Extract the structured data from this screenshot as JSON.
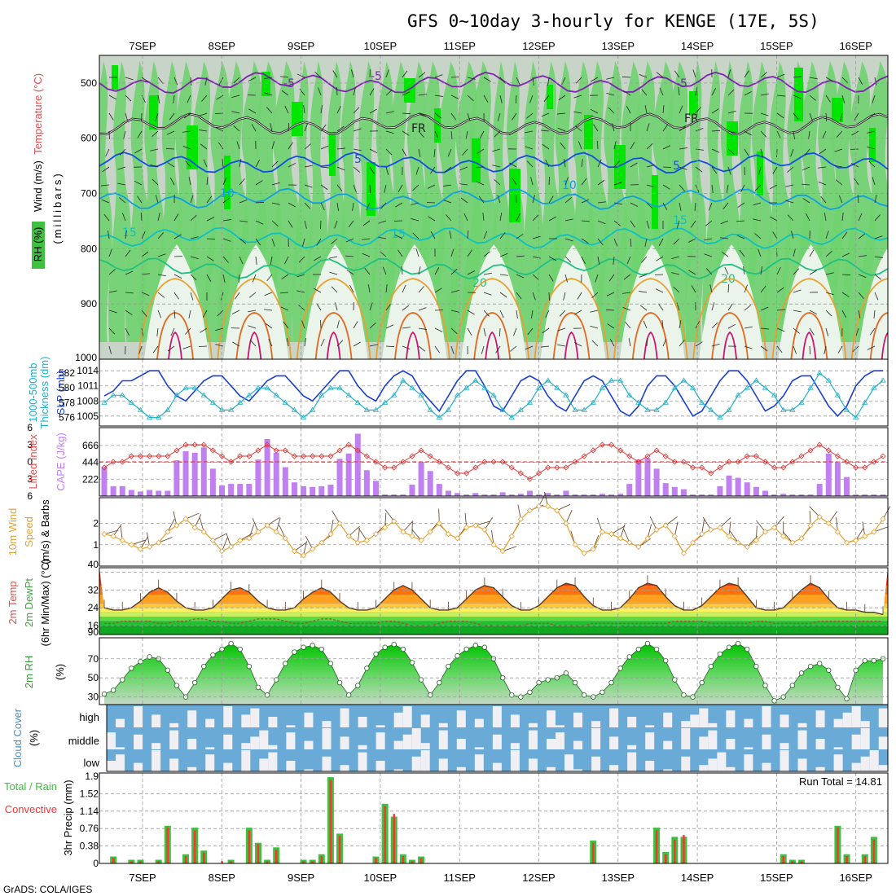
{
  "title": "GFS 0~10day 3-hourly for KENGE (17E, 5S)",
  "credit": "GrADS: COLA/IGES",
  "run_total": "Run Total = 14.81",
  "dates": [
    "7SEP",
    "8SEP",
    "9SEP",
    "10SEP",
    "11SEP",
    "12SEP",
    "13SEP",
    "14SEP",
    "15SEP",
    "16SEP"
  ],
  "colors": {
    "rh_green": "#5fd35f",
    "rh_bright": "#00e600",
    "rh_grey": "#b4c4b4",
    "rh_pale": "#e8f4e8",
    "slp": "#1a3fd0",
    "thickness": "#22b0c8",
    "cape": "#c080f0",
    "lifted": "#e03030",
    "wind": "#e8a030",
    "cloud": "#6aaad6",
    "precip_total": "#40c040",
    "precip_conv": "#ff3030"
  },
  "chart_data": [
    {
      "type": "heatmap",
      "panel": "upper-air",
      "ylabel_parts": [
        "Wind (m/s)",
        "Temperature (°C)",
        "RH (%)"
      ],
      "ylabel_unit": "(millibars)",
      "yticks": [
        500,
        600,
        700,
        800,
        900,
        1000
      ],
      "ylim": [
        1000,
        450
      ],
      "isotherms": [
        {
          "label": "-5",
          "p": 500
        },
        {
          "label": "FR",
          "p": 575
        },
        {
          "label": "5",
          "p": 645
        },
        {
          "label": "10",
          "p": 710
        },
        {
          "label": "15",
          "p": 780
        },
        {
          "label": "20",
          "p": 835
        }
      ],
      "contour_labels": [
        "-5",
        "-5",
        "-5",
        "FR",
        "FR",
        "5",
        "5",
        "10",
        "10",
        "15",
        "15",
        "15",
        "20",
        "20",
        "20"
      ]
    },
    {
      "type": "line",
      "panel": "slp-thickness",
      "ylabel_left": [
        "1000-500mb",
        "Thickness (dm)"
      ],
      "ylabel_right": "SLP (mb)",
      "yticks_left": [
        576,
        578,
        580,
        582
      ],
      "yticks_right": [
        1005,
        1008,
        1011,
        1014
      ],
      "series": [
        {
          "name": "SLP",
          "unit": "mb",
          "values": [
            1009,
            1010,
            1012,
            1012,
            1013,
            1014,
            1014,
            1011,
            1009,
            1008,
            1010,
            1012,
            1013,
            1013,
            1011,
            1009,
            1008,
            1010,
            1012,
            1013,
            1013,
            1011,
            1009,
            1008,
            1010,
            1012,
            1014,
            1014,
            1011,
            1009,
            1008,
            1011,
            1013,
            1014,
            1013,
            1010,
            1008,
            1006,
            1009,
            1012,
            1014,
            1014,
            1011,
            1007,
            1006,
            1009,
            1012,
            1013,
            1012,
            1009,
            1007,
            1006,
            1009,
            1012,
            1013,
            1012,
            1009,
            1006,
            1005,
            1007,
            1011,
            1013,
            1013,
            1011,
            1008,
            1005,
            1006,
            1009,
            1012,
            1014,
            1014,
            1012,
            1009,
            1006,
            1007,
            1009,
            1012,
            1013,
            1013,
            1010,
            1007,
            1005,
            1007,
            1011,
            1013,
            1014,
            1014
          ]
        },
        {
          "name": "Thickness",
          "unit": "dm",
          "values": [
            578,
            579,
            579,
            578,
            577,
            576,
            576,
            577,
            579,
            580,
            580,
            579,
            578,
            577,
            577,
            578,
            579,
            580,
            580,
            579,
            578,
            577,
            576,
            577,
            579,
            580,
            580,
            579,
            578,
            577,
            577,
            578,
            579,
            581,
            580,
            579,
            577,
            576,
            577,
            579,
            580,
            581,
            580,
            579,
            577,
            576,
            577,
            578,
            580,
            581,
            580,
            579,
            577,
            577,
            578,
            580,
            581,
            581,
            579,
            578,
            577,
            577,
            578,
            580,
            581,
            580,
            578,
            577,
            576,
            577,
            579,
            580,
            581,
            580,
            579,
            577,
            577,
            578,
            580,
            582,
            581,
            579,
            577,
            576,
            578,
            580,
            581
          ]
        }
      ]
    },
    {
      "type": "bar",
      "panel": "cape-lifted",
      "ylabel_left": "Lifted Index",
      "ylabel_right": "CAPE (J/kg)",
      "yticks_left": [
        6,
        3,
        0,
        -3,
        -6
      ],
      "yticks_right": [
        222,
        444,
        666
      ],
      "series": [
        {
          "name": "CAPE",
          "unit": "J/kg",
          "values": [
            380,
            130,
            130,
            80,
            60,
            80,
            70,
            70,
            470,
            590,
            570,
            640,
            360,
            140,
            160,
            160,
            160,
            480,
            750,
            570,
            380,
            180,
            130,
            120,
            130,
            150,
            490,
            560,
            820,
            340,
            200,
            20,
            20,
            20,
            150,
            450,
            330,
            160,
            70,
            40,
            20,
            40,
            20,
            20,
            50,
            20,
            30,
            70,
            20,
            40,
            20,
            70,
            20,
            20,
            20,
            30,
            20,
            30,
            160,
            480,
            500,
            360,
            170,
            120,
            90,
            20,
            20,
            20,
            130,
            270,
            240,
            180,
            120,
            70,
            20,
            30,
            20,
            20,
            20,
            160,
            560,
            440,
            250,
            20,
            20,
            20,
            20
          ]
        },
        {
          "name": "Lifted Index",
          "unit": "",
          "values": [
            1,
            0,
            0,
            -1,
            -1,
            -1,
            -1,
            -1,
            -2,
            -3,
            -3,
            -3,
            -2,
            -1,
            0,
            -1,
            -1,
            -2,
            -3,
            -2,
            -2,
            -1,
            -1,
            -1,
            -1,
            -1,
            -2,
            -3,
            -2,
            -1,
            0,
            1,
            1,
            0,
            -1,
            -2,
            -1,
            0,
            1,
            2,
            2,
            1,
            0,
            0,
            0,
            1,
            2,
            3,
            2,
            1,
            1,
            1,
            0,
            -1,
            -2,
            -3,
            -3,
            -2,
            -1,
            0,
            -1,
            -2,
            -1,
            0,
            0,
            1,
            1,
            2,
            1,
            0,
            0,
            -1,
            -1,
            0,
            1,
            1,
            0,
            -1,
            -2,
            -3,
            -2,
            -1,
            0,
            1,
            1,
            0,
            -1
          ]
        }
      ]
    },
    {
      "type": "line",
      "panel": "wind10m",
      "ylabel": [
        "10m Wind",
        "Speed",
        "(m/s) & Barbs"
      ],
      "yticks": [
        1,
        2
      ],
      "series": [
        {
          "name": "Speed",
          "unit": "m/s",
          "values": [
            1.5,
            1.4,
            1.2,
            1.0,
            0.8,
            0.9,
            1.1,
            1.6,
            1.9,
            2.2,
            1.8,
            1.6,
            1.2,
            0.7,
            0.9,
            1.2,
            1.3,
            1.6,
            1.9,
            1.6,
            1.3,
            0.7,
            0.5,
            0.8,
            1.1,
            1.5,
            2.0,
            1.4,
            1.1,
            1.2,
            1.5,
            1.8,
            2.1,
            1.6,
            1.4,
            1.2,
            1.6,
            2.0,
            1.5,
            1.3,
            1.8,
            1.9,
            1.7,
            1.0,
            0.7,
            1.4,
            2.2,
            2.6,
            2.8,
            2.8,
            2.6,
            2.0,
            1.0,
            0.6,
            0.8,
            1.6,
            1.5,
            1.3,
            1.1,
            0.9,
            1.3,
            1.7,
            1.9,
            1.4,
            0.6,
            1.1,
            1.5,
            1.7,
            1.8,
            1.4,
            1.1,
            0.9,
            1.2,
            1.6,
            1.8,
            1.4,
            1.1,
            1.3,
            1.9,
            2.3,
            2.0,
            1.6,
            1.1,
            1.2,
            1.4,
            1.6,
            2.2
          ]
        }
      ]
    },
    {
      "type": "area",
      "panel": "temperature",
      "ylabel": [
        "2m Temp",
        "2m DewPt",
        "(6hr Min/Max) (°C)"
      ],
      "yticks": [
        16,
        24,
        32,
        40
      ],
      "extra_tick": "90",
      "series": [
        {
          "name": "2m Temp",
          "unit": "°C",
          "values": [
            24,
            23,
            23,
            24,
            27,
            31,
            33,
            31,
            27,
            24,
            23,
            23,
            24,
            28,
            32,
            33,
            31,
            27,
            24,
            23,
            23,
            24,
            28,
            31,
            33,
            31,
            27,
            24,
            23,
            23,
            24,
            28,
            32,
            34,
            32,
            28,
            24,
            23,
            23,
            24,
            28,
            32,
            34,
            33,
            29,
            25,
            23,
            23,
            25,
            29,
            33,
            35,
            34,
            29,
            25,
            23,
            23,
            24,
            28,
            33,
            35,
            34,
            29,
            25,
            23,
            23,
            25,
            29,
            33,
            35,
            34,
            29,
            24,
            23,
            23,
            24,
            28,
            32,
            35,
            33,
            28,
            24,
            23,
            23,
            22,
            22,
            21
          ]
        },
        {
          "name": "2m DewPt",
          "unit": "°C",
          "values": [
            17,
            17,
            18,
            18,
            18,
            18,
            17,
            17,
            18,
            18,
            19,
            19,
            18,
            18,
            17,
            17,
            18,
            19,
            19,
            19,
            18,
            17,
            17,
            18,
            19,
            19,
            18,
            17,
            17,
            17,
            17,
            18,
            18,
            17,
            16,
            16,
            16,
            17,
            18,
            18,
            18,
            17,
            16,
            16,
            16,
            16,
            16,
            17,
            17,
            17,
            16,
            16,
            16,
            16,
            17,
            17,
            17,
            17,
            17,
            17,
            17,
            17,
            17,
            18,
            18,
            18,
            18,
            17,
            17,
            17,
            17,
            17,
            18,
            18,
            17,
            17,
            17,
            17,
            17,
            18,
            18,
            18,
            18,
            18,
            18,
            18,
            18
          ]
        }
      ]
    },
    {
      "type": "area",
      "panel": "rh2m",
      "ylabel": "2m RH",
      "yunit": "(%)",
      "yticks": [
        30,
        50,
        70
      ],
      "series": [
        {
          "name": "2m RH",
          "unit": "%",
          "values": [
            33,
            37,
            48,
            60,
            67,
            72,
            70,
            58,
            42,
            30,
            45,
            62,
            74,
            80,
            86,
            80,
            62,
            40,
            32,
            48,
            65,
            77,
            82,
            84,
            80,
            65,
            45,
            32,
            42,
            60,
            75,
            82,
            85,
            80,
            66,
            48,
            32,
            45,
            62,
            73,
            80,
            84,
            82,
            70,
            50,
            32,
            30,
            35,
            45,
            48,
            50,
            55,
            45,
            32,
            30,
            35,
            45,
            60,
            72,
            80,
            86,
            80,
            68,
            48,
            32,
            30,
            45,
            62,
            75,
            82,
            86,
            80,
            62,
            42,
            26,
            30,
            42,
            55,
            62,
            65,
            58,
            40,
            28,
            58,
            68,
            68,
            70
          ]
        }
      ]
    },
    {
      "type": "heatmap",
      "panel": "cloud",
      "ylabel": "Cloud Cover",
      "yunit": "(%)",
      "levels": [
        "high",
        "middle",
        "low"
      ]
    },
    {
      "type": "bar",
      "panel": "precip",
      "ylabel": "3hr Precip (mm)",
      "legend": [
        "Total / Rain",
        "Convective"
      ],
      "yticks": [
        0,
        0.38,
        0.76,
        1.14,
        1.52,
        1.9
      ],
      "series": [
        {
          "name": "Total / Rain",
          "unit": "mm",
          "values": [
            0,
            0.15,
            0,
            0.08,
            0.08,
            0,
            0.08,
            0.82,
            0,
            0.2,
            0.78,
            0.28,
            0,
            0,
            0.08,
            0,
            0.78,
            0.45,
            0.08,
            0.35,
            0,
            0,
            0.08,
            0.08,
            0.2,
            1.88,
            0.65,
            0,
            0,
            0,
            0.15,
            1.3,
            1.02,
            0.2,
            0.08,
            0.15,
            0,
            0,
            0,
            0,
            0,
            0,
            0,
            0,
            0,
            0,
            0,
            0,
            0,
            0,
            0,
            0,
            0,
            0,
            0.5,
            0,
            0,
            0,
            0,
            0,
            0,
            0.78,
            0.25,
            0.58,
            0.58,
            0,
            0,
            0,
            0,
            0,
            0,
            0,
            0,
            0,
            0,
            0.2,
            0.08,
            0.08,
            0,
            0,
            0,
            0.82,
            0.2,
            0,
            0.2,
            0.58,
            0
          ]
        },
        {
          "name": "Convective",
          "unit": "mm",
          "values": [
            0,
            0.12,
            0,
            0.05,
            0.05,
            0,
            0.05,
            0.78,
            0,
            0.16,
            0.72,
            0.24,
            0,
            0.05,
            0.05,
            0,
            0.72,
            0.42,
            0.05,
            0.3,
            0,
            0,
            0.05,
            0.05,
            0.16,
            1.82,
            0.6,
            0,
            0,
            0,
            0.12,
            1.25,
            1.08,
            0.16,
            0.05,
            0.12,
            0,
            0,
            0,
            0,
            0,
            0,
            0,
            0,
            0,
            0,
            0,
            0,
            0,
            0,
            0,
            0,
            0,
            0,
            0.45,
            0,
            0,
            0,
            0,
            0,
            0,
            0.72,
            0.2,
            0.52,
            0.62,
            0,
            0,
            0,
            0,
            0,
            0,
            0,
            0,
            0,
            0,
            0.16,
            0.05,
            0.05,
            0,
            0,
            0,
            0.78,
            0.16,
            0,
            0.16,
            0.52,
            0
          ]
        }
      ]
    }
  ]
}
